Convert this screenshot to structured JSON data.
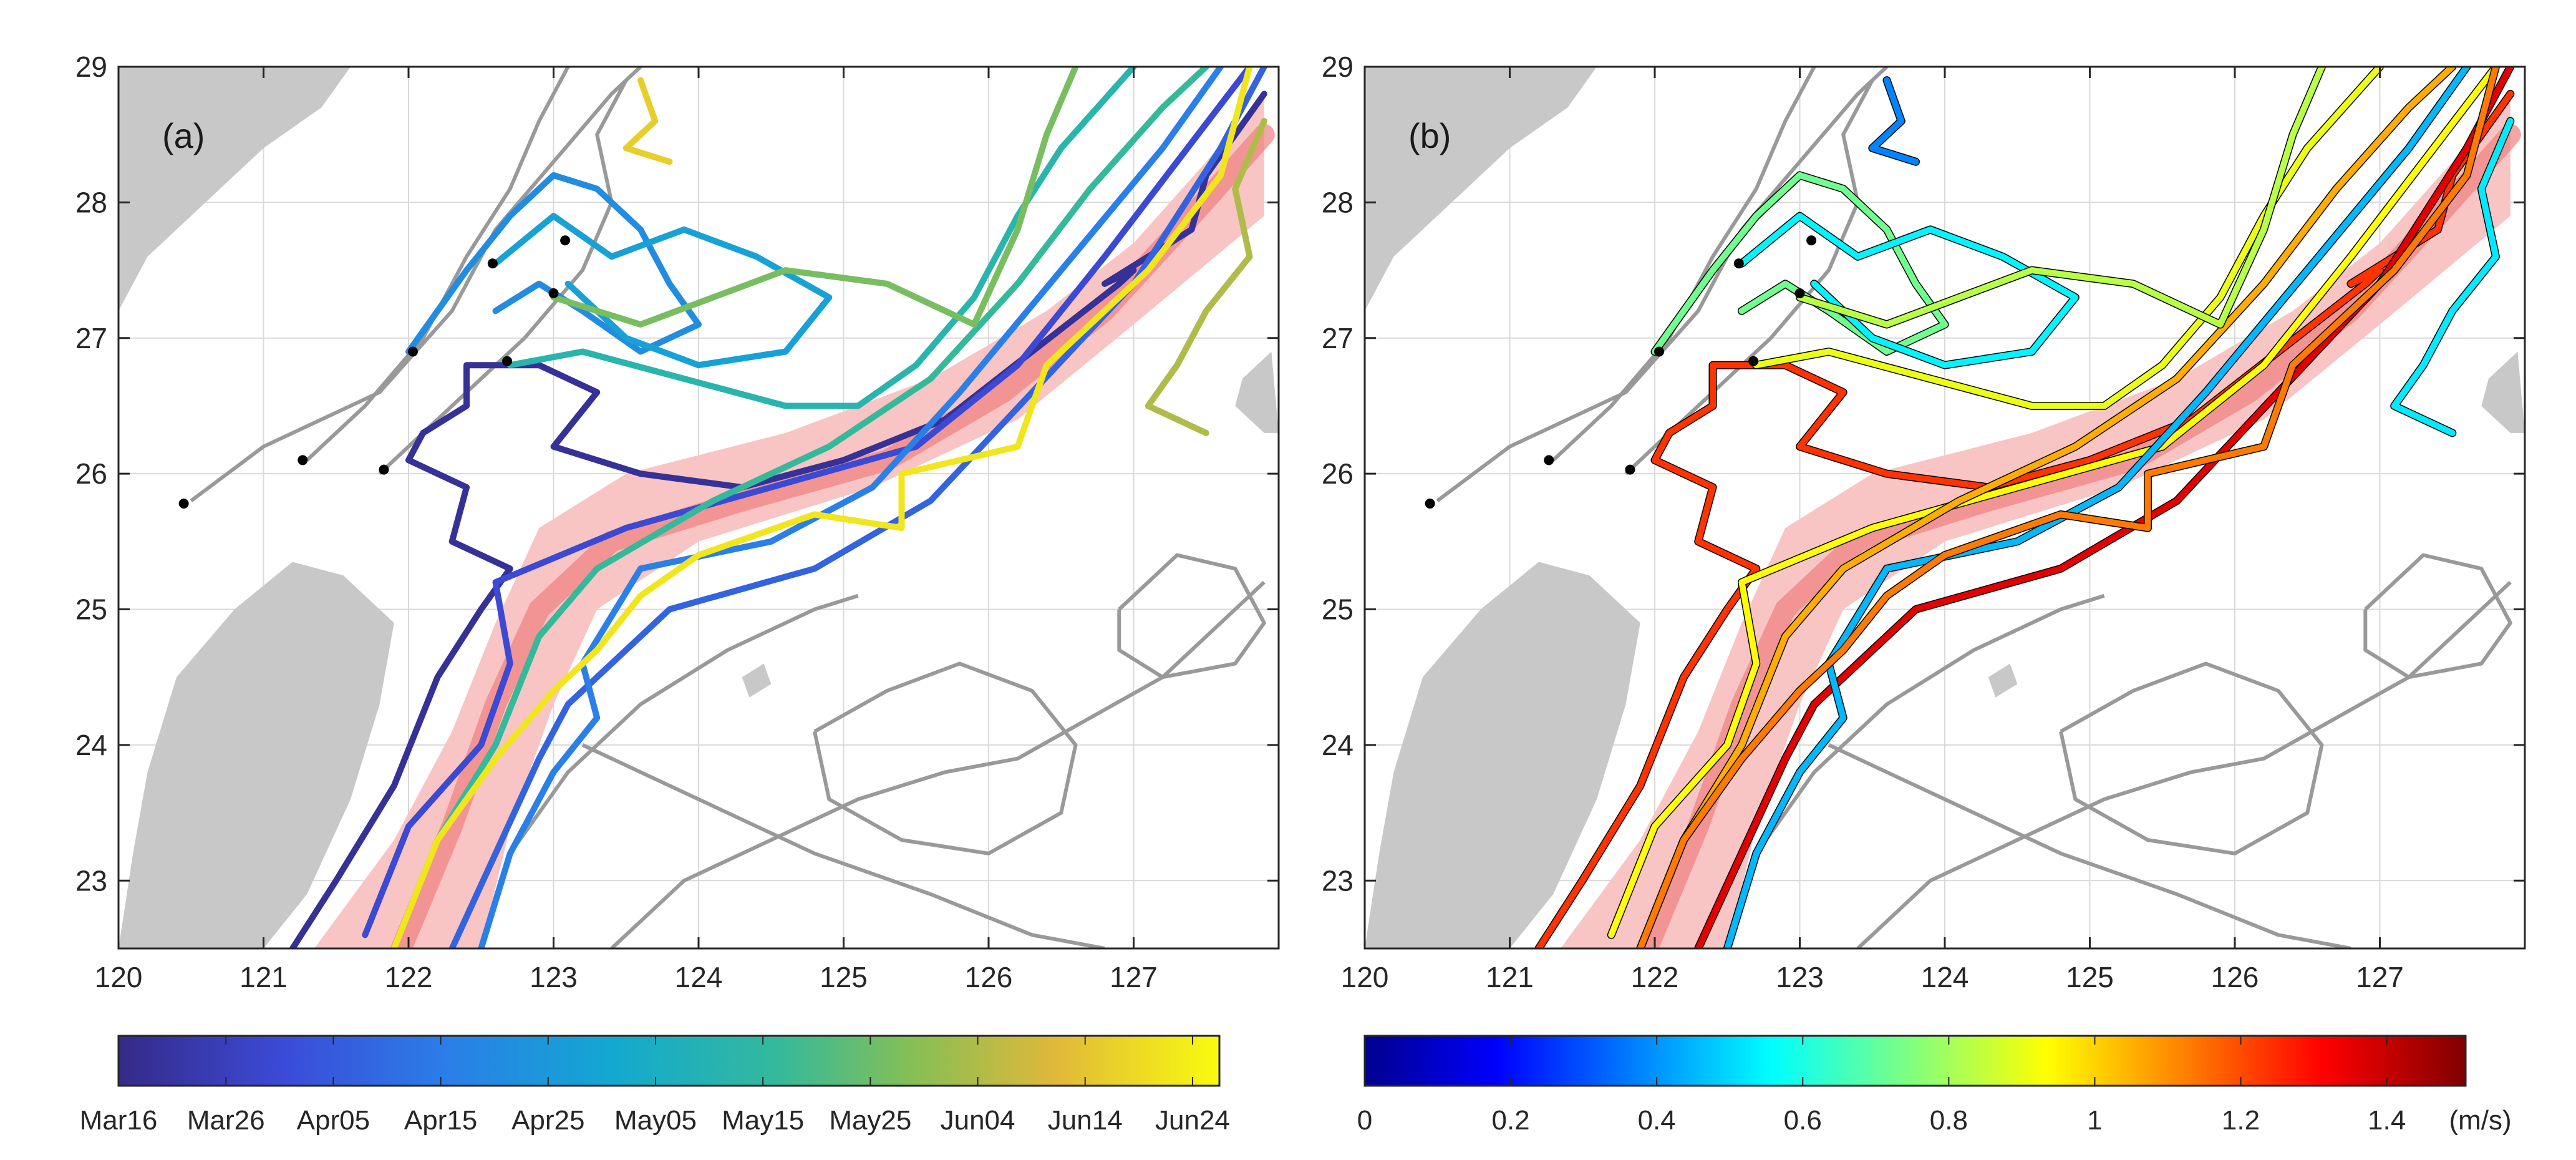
{
  "panels": [
    {
      "label": "(a)",
      "xlim": [
        120,
        128
      ],
      "ylim": [
        22.5,
        29
      ],
      "x_ticks": [
        "120",
        "121",
        "122",
        "123",
        "124",
        "125",
        "126",
        "127"
      ],
      "y_ticks": [
        "23",
        "24",
        "25",
        "26",
        "27",
        "28",
        "29"
      ],
      "x_tick_values": [
        120,
        121,
        122,
        123,
        124,
        125,
        126,
        127
      ],
      "y_tick_values": [
        23,
        24,
        25,
        26,
        27,
        28,
        29
      ],
      "colorbar": {
        "type": "date",
        "colormap": "parula",
        "labels": [
          "Mar16",
          "Mar26",
          "Apr05",
          "Apr15",
          "Apr25",
          "May05",
          "May15",
          "May25",
          "Jun04",
          "Jun14",
          "Jun24"
        ]
      }
    },
    {
      "label": "(b)",
      "xlim": [
        120,
        128
      ],
      "ylim": [
        22.5,
        29
      ],
      "x_ticks": [
        "120",
        "121",
        "122",
        "123",
        "124",
        "125",
        "126",
        "127"
      ],
      "y_ticks": [
        "23",
        "24",
        "25",
        "26",
        "27",
        "28",
        "29"
      ],
      "x_tick_values": [
        120,
        121,
        122,
        123,
        124,
        125,
        126,
        127
      ],
      "y_tick_values": [
        23,
        24,
        25,
        26,
        27,
        28,
        29
      ],
      "colorbar": {
        "type": "speed",
        "colormap": "jet",
        "labels": [
          "0",
          "0.2",
          "0.4",
          "0.6",
          "0.8",
          "1",
          "1.2",
          "1.4"
        ],
        "unit": "(m/s)"
      }
    }
  ],
  "colors": {
    "land": "#c8c8c8",
    "kuroshio_band": "#f9c4c4",
    "kuroshio_core": "#f08080",
    "isobath": "#999999",
    "release_point": "#000000",
    "grid": "#d9d9d9"
  },
  "release_points": [
    {
      "lon": 120.45,
      "lat": 25.78
    },
    {
      "lon": 121.27,
      "lat": 26.1
    },
    {
      "lon": 121.83,
      "lat": 26.03
    },
    {
      "lon": 122.03,
      "lat": 26.9
    },
    {
      "lon": 122.58,
      "lat": 27.55
    },
    {
      "lon": 122.68,
      "lat": 26.83
    },
    {
      "lon": 123.08,
      "lat": 27.72
    },
    {
      "lon": 123.0,
      "lat": 27.33
    }
  ],
  "trajectories": [
    {
      "date_frac": 0.03,
      "speed_frac": 0.82,
      "points": [
        [
          121.2,
          22.5
        ],
        [
          121.5,
          23.0
        ],
        [
          121.9,
          23.7
        ],
        [
          122.2,
          24.5
        ],
        [
          122.5,
          25.0
        ],
        [
          122.7,
          25.3
        ],
        [
          122.3,
          25.5
        ],
        [
          122.4,
          25.9
        ],
        [
          122.0,
          26.1
        ],
        [
          122.1,
          26.3
        ],
        [
          122.4,
          26.5
        ],
        [
          122.4,
          26.8
        ],
        [
          122.9,
          26.8
        ],
        [
          123.3,
          26.6
        ],
        [
          123.0,
          26.2
        ],
        [
          123.6,
          26.0
        ],
        [
          124.3,
          25.9
        ],
        [
          125.0,
          26.1
        ],
        [
          125.7,
          26.4
        ],
        [
          126.3,
          26.9
        ],
        [
          126.9,
          27.4
        ],
        [
          127.0,
          27.5
        ],
        [
          126.8,
          27.4
        ],
        [
          127.4,
          27.8
        ],
        [
          127.5,
          28.2
        ],
        [
          127.9,
          28.8
        ]
      ]
    },
    {
      "date_frac": 0.14,
      "speed_frac": 0.62,
      "points": [
        [
          121.7,
          22.6
        ],
        [
          122.0,
          23.4
        ],
        [
          122.5,
          24.0
        ],
        [
          122.7,
          24.6
        ],
        [
          122.6,
          25.2
        ],
        [
          123.5,
          25.6
        ],
        [
          124.5,
          25.9
        ],
        [
          125.5,
          26.2
        ],
        [
          126.2,
          26.8
        ],
        [
          126.8,
          27.6
        ],
        [
          127.3,
          28.3
        ],
        [
          127.8,
          29.0
        ]
      ]
    },
    {
      "date_frac": 0.22,
      "speed_frac": 0.9,
      "points": [
        [
          122.3,
          22.5
        ],
        [
          122.6,
          23.2
        ],
        [
          122.9,
          23.9
        ],
        [
          123.1,
          24.3
        ],
        [
          123.8,
          25.0
        ],
        [
          124.8,
          25.3
        ],
        [
          125.6,
          25.8
        ],
        [
          126.3,
          26.6
        ],
        [
          127.0,
          27.4
        ],
        [
          127.6,
          28.4
        ],
        [
          127.9,
          29.0
        ]
      ]
    },
    {
      "date_frac": 0.3,
      "speed_frac": 0.3,
      "points": [
        [
          122.5,
          22.5
        ],
        [
          122.7,
          23.2
        ],
        [
          123.0,
          23.8
        ],
        [
          123.3,
          24.2
        ],
        [
          123.2,
          24.6
        ],
        [
          123.6,
          25.3
        ],
        [
          124.5,
          25.5
        ],
        [
          125.2,
          25.9
        ],
        [
          125.8,
          26.6
        ],
        [
          126.5,
          27.5
        ],
        [
          127.2,
          28.4
        ],
        [
          127.6,
          29.0
        ]
      ]
    },
    {
      "date_frac": 0.35,
      "speed_frac": 0.48,
      "points": [
        [
          122.0,
          26.9
        ],
        [
          122.2,
          27.2
        ],
        [
          122.4,
          27.5
        ],
        [
          122.7,
          27.9
        ],
        [
          123.0,
          28.2
        ],
        [
          123.3,
          28.1
        ],
        [
          123.6,
          27.8
        ],
        [
          123.8,
          27.4
        ],
        [
          124.0,
          27.1
        ],
        [
          123.6,
          26.9
        ],
        [
          123.2,
          27.2
        ],
        [
          122.9,
          27.4
        ],
        [
          122.6,
          27.2
        ]
      ]
    },
    {
      "date_frac": 0.42,
      "speed_frac": 0.36,
      "points": [
        [
          122.6,
          27.55
        ],
        [
          123.0,
          27.9
        ],
        [
          123.4,
          27.6
        ],
        [
          123.9,
          27.8
        ],
        [
          124.4,
          27.6
        ],
        [
          124.9,
          27.3
        ],
        [
          124.6,
          26.9
        ],
        [
          124.0,
          26.8
        ],
        [
          123.5,
          27.0
        ],
        [
          123.1,
          27.4
        ]
      ]
    },
    {
      "date_frac": 0.55,
      "speed_frac": 0.6,
      "points": [
        [
          122.7,
          26.8
        ],
        [
          123.2,
          26.9
        ],
        [
          123.9,
          26.7
        ],
        [
          124.6,
          26.5
        ],
        [
          125.1,
          26.5
        ],
        [
          125.5,
          26.8
        ],
        [
          125.9,
          27.3
        ],
        [
          126.2,
          27.9
        ],
        [
          126.5,
          28.4
        ],
        [
          127.0,
          29.0
        ]
      ]
    },
    {
      "date_frac": 0.6,
      "speed_frac": 0.7,
      "points": [
        [
          121.9,
          22.5
        ],
        [
          122.2,
          23.3
        ],
        [
          122.6,
          24.0
        ],
        [
          122.9,
          24.8
        ],
        [
          123.3,
          25.3
        ],
        [
          124.1,
          25.8
        ],
        [
          124.9,
          26.2
        ],
        [
          125.6,
          26.7
        ],
        [
          126.2,
          27.4
        ],
        [
          126.7,
          28.1
        ],
        [
          127.2,
          28.7
        ],
        [
          127.5,
          29.0
        ]
      ]
    },
    {
      "date_frac": 0.7,
      "speed_frac": 0.55,
      "points": [
        [
          123.0,
          27.3
        ],
        [
          123.6,
          27.1
        ],
        [
          124.1,
          27.3
        ],
        [
          124.6,
          27.5
        ],
        [
          125.3,
          27.4
        ],
        [
          125.9,
          27.1
        ],
        [
          126.2,
          27.8
        ],
        [
          126.4,
          28.5
        ],
        [
          126.6,
          29.0
        ]
      ]
    },
    {
      "date_frac": 0.78,
      "speed_frac": 0.35,
      "points": [
        [
          127.9,
          28.6
        ],
        [
          127.7,
          28.1
        ],
        [
          127.8,
          27.6
        ],
        [
          127.5,
          27.2
        ],
        [
          127.3,
          26.8
        ],
        [
          127.1,
          26.5
        ],
        [
          127.5,
          26.3
        ]
      ]
    },
    {
      "date_frac": 0.95,
      "speed_frac": 0.75,
      "points": [
        [
          121.9,
          22.5
        ],
        [
          122.2,
          23.3
        ],
        [
          122.6,
          23.9
        ],
        [
          123.0,
          24.4
        ],
        [
          123.3,
          24.7
        ],
        [
          123.6,
          25.1
        ],
        [
          124.0,
          25.4
        ],
        [
          124.8,
          25.7
        ],
        [
          125.4,
          25.6
        ],
        [
          125.4,
          26.0
        ],
        [
          126.2,
          26.2
        ],
        [
          126.4,
          26.8
        ],
        [
          127.1,
          27.5
        ],
        [
          127.6,
          28.2
        ],
        [
          127.8,
          29.0
        ]
      ]
    },
    {
      "date_frac": 0.9,
      "speed_frac": 0.25,
      "points": [
        [
          123.6,
          28.9
        ],
        [
          123.7,
          28.6
        ],
        [
          123.5,
          28.4
        ],
        [
          123.8,
          28.3
        ]
      ]
    }
  ],
  "isobaths": [
    [
      [
        120.5,
        25.8
      ],
      [
        121.0,
        26.2
      ],
      [
        121.8,
        26.6
      ],
      [
        122.3,
        27.2
      ],
      [
        122.6,
        27.8
      ],
      [
        123.0,
        28.3
      ],
      [
        123.4,
        28.8
      ],
      [
        123.6,
        29.0
      ]
    ],
    [
      [
        121.3,
        26.1
      ],
      [
        121.7,
        26.5
      ],
      [
        122.1,
        27.0
      ],
      [
        122.4,
        27.6
      ],
      [
        122.7,
        28.1
      ],
      [
        122.9,
        28.6
      ],
      [
        123.1,
        29.0
      ]
    ],
    [
      [
        121.8,
        26.0
      ],
      [
        122.3,
        26.5
      ],
      [
        122.8,
        27.0
      ],
      [
        123.2,
        27.5
      ],
      [
        123.4,
        28.0
      ],
      [
        123.3,
        28.5
      ],
      [
        123.5,
        28.9
      ]
    ],
    [
      [
        122.5,
        22.5
      ],
      [
        122.7,
        23.2
      ],
      [
        123.1,
        23.8
      ],
      [
        123.6,
        24.3
      ],
      [
        124.2,
        24.7
      ],
      [
        124.8,
        25.0
      ],
      [
        125.1,
        25.1
      ]
    ],
    [
      [
        123.2,
        24.0
      ],
      [
        124.0,
        23.6
      ],
      [
        124.8,
        23.2
      ],
      [
        125.6,
        22.9
      ],
      [
        126.3,
        22.6
      ],
      [
        126.8,
        22.5
      ]
    ],
    [
      [
        124.8,
        24.1
      ],
      [
        125.3,
        24.4
      ],
      [
        125.8,
        24.6
      ],
      [
        126.3,
        24.4
      ],
      [
        126.6,
        24.0
      ],
      [
        126.5,
        23.5
      ],
      [
        126.0,
        23.2
      ],
      [
        125.4,
        23.3
      ],
      [
        124.9,
        23.6
      ],
      [
        124.8,
        24.1
      ]
    ],
    [
      [
        126.9,
        25.0
      ],
      [
        127.3,
        25.4
      ],
      [
        127.7,
        25.3
      ],
      [
        127.9,
        24.9
      ],
      [
        127.7,
        24.6
      ],
      [
        127.2,
        24.5
      ],
      [
        126.9,
        24.7
      ],
      [
        126.9,
        25.0
      ]
    ],
    [
      [
        123.4,
        22.5
      ],
      [
        123.9,
        23.0
      ],
      [
        124.5,
        23.3
      ],
      [
        125.1,
        23.6
      ],
      [
        125.7,
        23.8
      ],
      [
        126.2,
        23.9
      ],
      [
        126.7,
        24.2
      ],
      [
        127.2,
        24.5
      ],
      [
        127.9,
        25.2
      ]
    ]
  ]
}
